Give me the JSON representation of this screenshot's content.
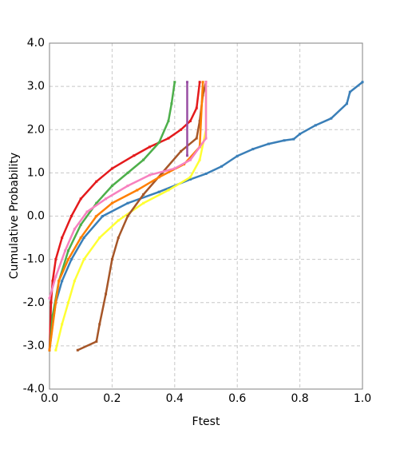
{
  "chart_data": {
    "type": "line",
    "x_label": "Ftest",
    "y_label": "Cumulative Probability",
    "xlim": [
      0,
      1
    ],
    "ylim": [
      -4,
      4
    ],
    "grid": true,
    "xticks": [
      {
        "value": 0,
        "label": "0.0"
      },
      {
        "value": 0.2,
        "label": "0.2"
      },
      {
        "value": 0.4,
        "label": "0.4"
      },
      {
        "value": 0.6,
        "label": "0.6"
      },
      {
        "value": 0.8,
        "label": "0.8"
      },
      {
        "value": 1,
        "label": "1.0"
      }
    ],
    "yticks": [
      {
        "value": -4,
        "label": "-4.0"
      },
      {
        "value": -3,
        "label": "-3.0"
      },
      {
        "value": -2,
        "label": "-2.0"
      },
      {
        "value": -1,
        "label": "-1.0"
      },
      {
        "value": 0,
        "label": "0.0"
      },
      {
        "value": 1,
        "label": "1.0"
      },
      {
        "value": 2,
        "label": "2.0"
      },
      {
        "value": 3,
        "label": "3.0"
      },
      {
        "value": 4,
        "label": "4.0"
      }
    ],
    "series": [
      {
        "color": "#3a7fb8",
        "x": [
          0,
          0.01,
          0.02,
          0.04,
          0.07,
          0.11,
          0.17,
          0.25,
          0.35,
          0.45,
          0.5,
          0.55,
          0.6,
          0.65,
          0.7,
          0.75,
          0.78,
          0.8,
          0.85,
          0.9,
          0.95,
          0.96,
          1.0
        ],
        "values": [
          -3.1,
          -2.5,
          -2.0,
          -1.5,
          -1.0,
          -0.5,
          0,
          0.3,
          0.56,
          0.85,
          0.98,
          1.15,
          1.39,
          1.55,
          1.67,
          1.75,
          1.78,
          1.9,
          2.1,
          2.26,
          2.6,
          2.87,
          3.1
        ]
      },
      {
        "color": "#e41a1c",
        "x": [
          0,
          0.005,
          0.01,
          0.02,
          0.04,
          0.07,
          0.1,
          0.15,
          0.2,
          0.27,
          0.32,
          0.38,
          0.42,
          0.45,
          0.47,
          0.48
        ],
        "values": [
          -3.1,
          -2,
          -1.5,
          -1,
          -0.5,
          0,
          0.4,
          0.8,
          1.1,
          1.4,
          1.6,
          1.8,
          2.0,
          2.2,
          2.5,
          3.1
        ]
      },
      {
        "color": "#4daf4a",
        "x": [
          0,
          0.01,
          0.03,
          0.06,
          0.1,
          0.15,
          0.2,
          0.25,
          0.3,
          0.35,
          0.38,
          0.39,
          0.4
        ],
        "values": [
          -3.1,
          -2.3,
          -1.5,
          -0.8,
          -0.2,
          0.3,
          0.7,
          1.0,
          1.3,
          1.7,
          2.2,
          2.6,
          3.1
        ]
      },
      {
        "color": "#ffff33",
        "x": [
          0.02,
          0.04,
          0.06,
          0.08,
          0.11,
          0.16,
          0.22,
          0.3,
          0.38,
          0.45,
          0.48,
          0.5,
          0.5
        ],
        "values": [
          -3.1,
          -2.5,
          -2,
          -1.5,
          -1,
          -0.5,
          -0.1,
          0.3,
          0.6,
          0.9,
          1.3,
          2,
          3.1
        ]
      },
      {
        "color": "#a65628",
        "x": [
          0.09,
          0.15,
          0.16,
          0.18,
          0.2,
          0.22,
          0.25,
          0.3,
          0.36,
          0.42,
          0.47,
          0.48,
          0.49,
          0.5
        ],
        "values": [
          -3.1,
          -2.9,
          -2.5,
          -1.8,
          -1,
          -0.5,
          0,
          0.5,
          1.0,
          1.5,
          1.8,
          2.2,
          2.8,
          3.1
        ]
      },
      {
        "color": "#ff7f00",
        "x": [
          0,
          0.02,
          0.03,
          0.06,
          0.1,
          0.15,
          0.2,
          0.28,
          0.35,
          0.43,
          0.48,
          0.49
        ],
        "values": [
          -3.1,
          -2,
          -1.5,
          -1,
          -0.5,
          0,
          0.3,
          0.6,
          0.9,
          1.2,
          1.6,
          3.1
        ]
      },
      {
        "color": "#f781bf",
        "x": [
          0,
          0.02,
          0.05,
          0.08,
          0.12,
          0.18,
          0.25,
          0.32,
          0.4,
          0.45,
          0.5,
          0.5
        ],
        "values": [
          -1.9,
          -1.4,
          -0.8,
          -0.3,
          0.1,
          0.4,
          0.7,
          0.95,
          1.1,
          1.3,
          1.8,
          3.1
        ]
      },
      {
        "color": "#984ea3",
        "x": [
          0.44,
          0.44
        ],
        "values": [
          1.4,
          3.1
        ]
      }
    ]
  }
}
